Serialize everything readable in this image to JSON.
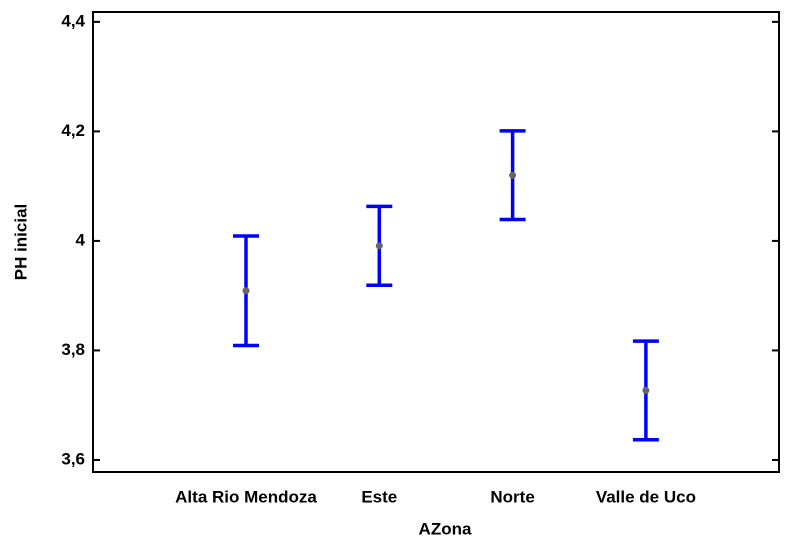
{
  "chart_data": {
    "type": "errorbar",
    "xlabel": "AZona",
    "ylabel": "PH inicial",
    "categories": [
      "Alta Rio Mendoza",
      "Este",
      "Norte",
      "Valle de Uco"
    ],
    "values": [
      3.909,
      3.991,
      4.12,
      3.727
    ],
    "errors": [
      0.1,
      0.072,
      0.081,
      0.09
    ],
    "color": "#0000ff",
    "point_color": "#666666",
    "ylim": [
      3.578,
      4.418
    ],
    "yticks": [
      {
        "value": 3.6,
        "label": "3,6"
      },
      {
        "value": 3.8,
        "label": "3,8"
      },
      4,
      {
        "value": 4.2,
        "label": "4,2"
      },
      {
        "value": 4.4,
        "label": "4,4"
      }
    ]
  }
}
